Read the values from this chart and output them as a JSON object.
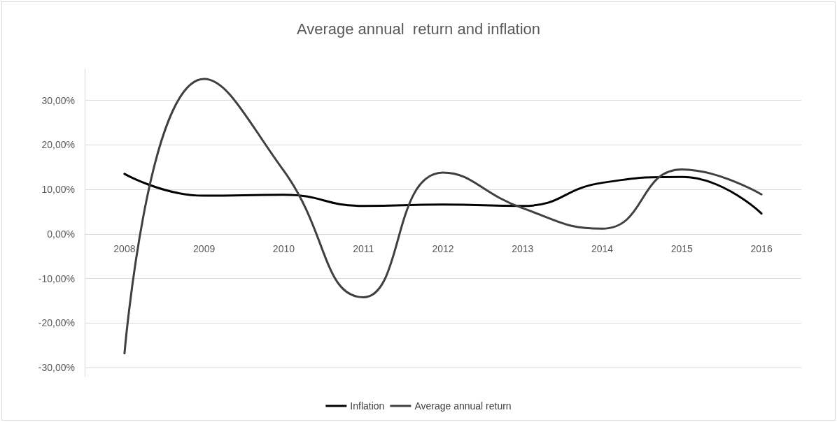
{
  "chart_data": {
    "type": "line",
    "title": "Average annual  return and inflation",
    "categories": [
      "2008",
      "2009",
      "2010",
      "2011",
      "2012",
      "2013",
      "2014",
      "2015",
      "2016"
    ],
    "series": [
      {
        "name": "Inflation",
        "color": "#000000",
        "values": [
          13.5,
          8.6,
          8.8,
          6.3,
          6.6,
          6.3,
          11.5,
          12.8,
          4.6
        ]
      },
      {
        "name": "Average annual return",
        "color": "#404040",
        "values": [
          -26.8,
          34.8,
          14.2,
          -14.2,
          13.8,
          5.8,
          1.2,
          14.5,
          8.9
        ]
      }
    ],
    "ylim": [
      -32,
      37
    ],
    "yticks": [
      {
        "value": -30,
        "label": "-30,00%"
      },
      {
        "value": -20,
        "label": "-20,00%"
      },
      {
        "value": -10,
        "label": "-10,00%"
      },
      {
        "value": 0,
        "label": "0,00%"
      },
      {
        "value": 10,
        "label": "10,00%"
      },
      {
        "value": 20,
        "label": "20,00%"
      },
      {
        "value": 30,
        "label": "30,00%"
      }
    ],
    "grid": "y",
    "legend": "bottom",
    "marker": "none",
    "line_style": "solid"
  }
}
